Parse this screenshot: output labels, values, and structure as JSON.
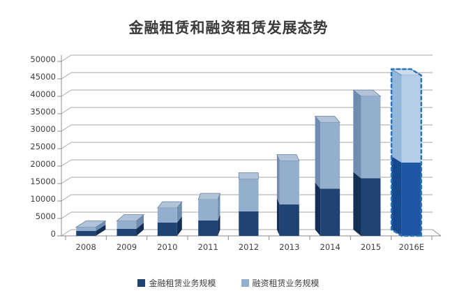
{
  "title": "金融租赁和融资租赁发展态势",
  "chart_data": {
    "type": "bar",
    "stacked": true,
    "pseudo_3d": true,
    "title": "金融租赁和融资租赁发展态势",
    "categories": [
      "2008",
      "2009",
      "2010",
      "2011",
      "2012",
      "2013",
      "2014",
      "2015",
      "2016E"
    ],
    "series": [
      {
        "name": "金融租赁业务规模",
        "color": "#1f4473",
        "values": [
          1400,
          2000,
          3800,
          4400,
          7000,
          9000,
          13500,
          16500,
          21000
        ]
      },
      {
        "name": "融资租赁业务规模",
        "color": "#94aecd",
        "values": [
          1100,
          2300,
          4200,
          6000,
          9300,
          12500,
          19000,
          23500,
          25000
        ]
      }
    ],
    "xlabel": "",
    "ylabel": "",
    "ylim": [
      0,
      50000
    ],
    "y_tick_step": 5000,
    "y_tick_labels": [
      "0",
      "5000",
      "10000",
      "15000",
      "20000",
      "25000",
      "30000",
      "35000",
      "40000",
      "45000",
      "50000"
    ],
    "grid": true,
    "legend_position": "bottom",
    "highlighted_category": "2016E",
    "highlight_style": {
      "outline_color": "#2e75b6",
      "dashed": true
    },
    "colors": {
      "gridline": "#a6a6a6",
      "axis": "#8c8c8c",
      "label_text": "#3f3f3f",
      "normal": {
        "front_dark": "#1f4473",
        "front_light": "#94aecd",
        "side_dark": "#142f55",
        "side_light": "#6f8db0",
        "top": "#b0c3d8",
        "top_stroke": "#647f9c"
      },
      "highlight": {
        "front_dark": "#1d57a4",
        "front_light": "#b5cde6",
        "side_dark": "#164a8f",
        "side_light": "#93b7dc",
        "top": "#c9dbee",
        "top_stroke": "#5b84ad"
      }
    }
  }
}
